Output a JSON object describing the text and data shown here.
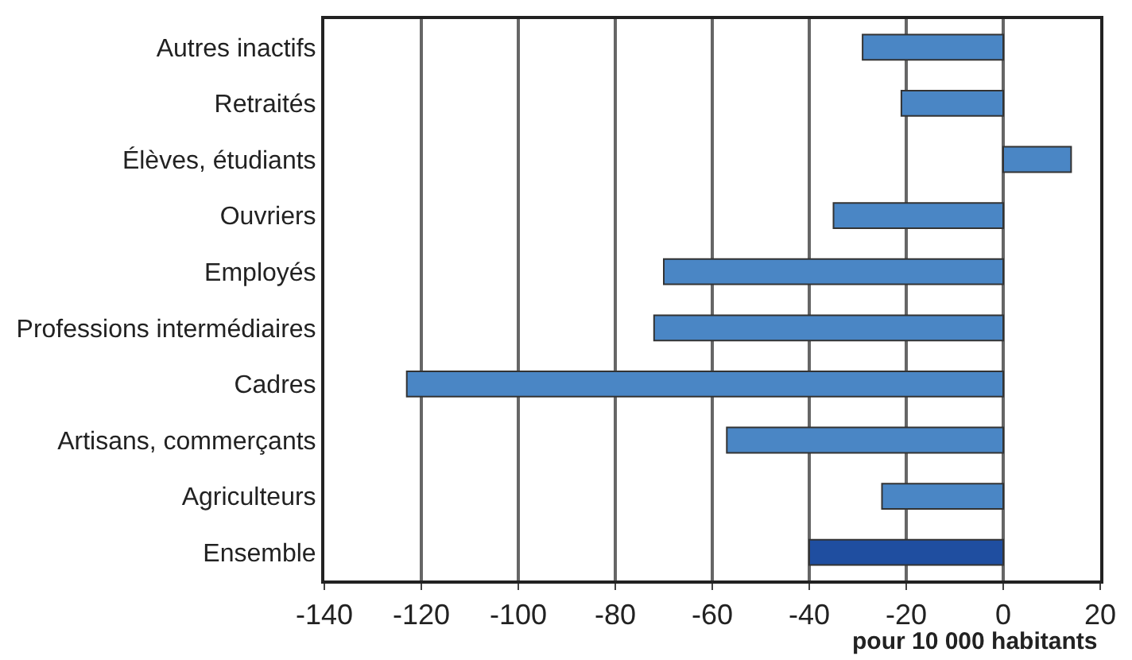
{
  "chart_data": {
    "type": "bar",
    "orientation": "horizontal",
    "xlabel": "pour 10 000 habitants",
    "categories": [
      "Autres inactifs",
      "Retraités",
      "Élèves, étudiants",
      "Ouvriers",
      "Employés",
      "Professions intermédiaires",
      "Cadres",
      "Artisans, commerçants",
      "Agriculteurs",
      "Ensemble"
    ],
    "values": [
      -29,
      -21,
      14,
      -35,
      -70,
      -72,
      -123,
      -57,
      -25,
      -40
    ],
    "colors": [
      "#4a86c5",
      "#4a86c5",
      "#4a86c5",
      "#4a86c5",
      "#4a86c5",
      "#4a86c5",
      "#4a86c5",
      "#4a86c5",
      "#4a86c5",
      "#1f4ea0"
    ],
    "xlim": [
      -140,
      20
    ],
    "xticks": [
      -140,
      -120,
      -100,
      -80,
      -60,
      -40,
      -20,
      0,
      20
    ],
    "grid": "x",
    "legend": false
  }
}
